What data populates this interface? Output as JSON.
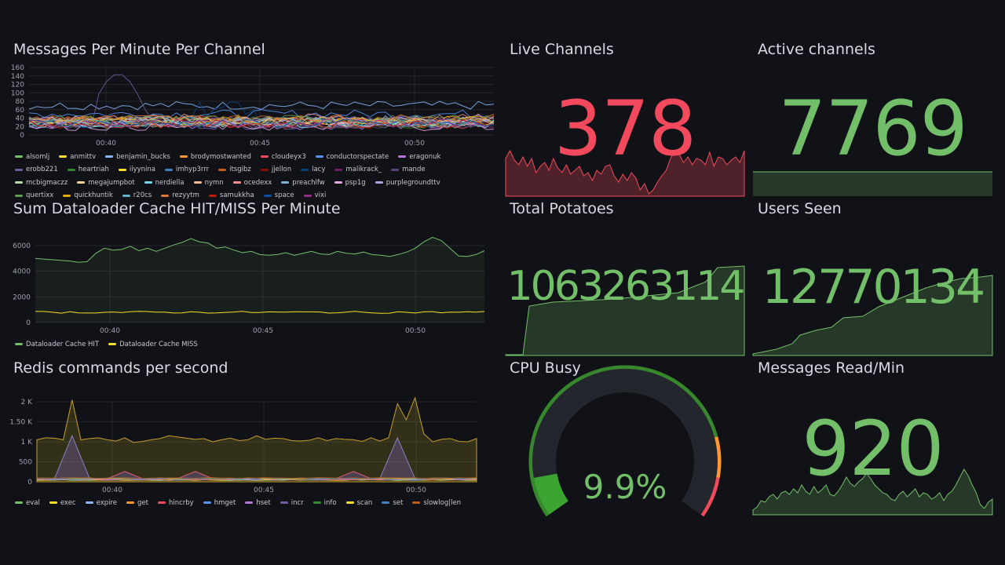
{
  "panels": {
    "messages_per_minute": {
      "title": "Messages Per Minute Per Channel",
      "legend": [
        {
          "name": "alsomlj",
          "color": "#73bf69"
        },
        {
          "name": "anmittv",
          "color": "#fade2a"
        },
        {
          "name": "benjamin_bucks",
          "color": "#8ab8ff"
        },
        {
          "name": "brodymostwanted",
          "color": "#ff9830"
        },
        {
          "name": "cloudeyx3",
          "color": "#f2495c"
        },
        {
          "name": "conductorspectate",
          "color": "#5794f2"
        },
        {
          "name": "eragonuk",
          "color": "#b877d9"
        },
        {
          "name": "erobb221",
          "color": "#705da0"
        },
        {
          "name": "heartriah",
          "color": "#37872d"
        },
        {
          "name": "iiyynina",
          "color": "#fade2a"
        },
        {
          "name": "imhyp3rrr",
          "color": "#447ebc"
        },
        {
          "name": "itsgibz",
          "color": "#c15c17"
        },
        {
          "name": "jjellon",
          "color": "#890f02"
        },
        {
          "name": "lacy",
          "color": "#0a437c"
        },
        {
          "name": "malikrack_",
          "color": "#6d1f62"
        },
        {
          "name": "mande",
          "color": "#584477"
        },
        {
          "name": "mcbigmaczz",
          "color": "#b7dbab"
        },
        {
          "name": "megajumpbot",
          "color": "#f4d598"
        },
        {
          "name": "nerdiella",
          "color": "#70dbed"
        },
        {
          "name": "nymn",
          "color": "#f9ba8f"
        },
        {
          "name": "ocedexx",
          "color": "#f29191"
        },
        {
          "name": "preachlfw",
          "color": "#82b5d8"
        },
        {
          "name": "psp1g",
          "color": "#e5a8e2"
        },
        {
          "name": "purplegroundttv",
          "color": "#aea2e0"
        },
        {
          "name": "quertixx",
          "color": "#629e51"
        },
        {
          "name": "quickhuntik",
          "color": "#e5ac0e"
        },
        {
          "name": "r20cs",
          "color": "#64b0c8"
        },
        {
          "name": "rezyytm",
          "color": "#e0752d"
        },
        {
          "name": "samukkha",
          "color": "#bf1b00"
        },
        {
          "name": "space",
          "color": "#0a50a1"
        },
        {
          "name": "vixi",
          "color": "#962d82"
        }
      ],
      "y_ticks": [
        "160",
        "140",
        "120",
        "100",
        "80",
        "60",
        "40",
        "20",
        "0"
      ],
      "x_ticks": [
        "00:40",
        "00:45",
        "00:50"
      ]
    },
    "dataloader_cache": {
      "title": "Sum Dataloader Cache HIT/MISS Per Minute",
      "y_ticks": [
        "6000",
        "4000",
        "2000",
        "0"
      ],
      "x_ticks": [
        "00:40",
        "00:45",
        "00:50"
      ],
      "legend": [
        {
          "name": "Dataloader Cache HIT",
          "color": "#73bf69"
        },
        {
          "name": "Dataloader Cache MISS",
          "color": "#fade2a"
        }
      ]
    },
    "redis_commands": {
      "title": "Redis commands per second",
      "y_ticks": [
        "2 K",
        "1.50 K",
        "1 K",
        "500",
        "0"
      ],
      "x_ticks": [
        "00:40",
        "00:45",
        "00:50"
      ],
      "legend": [
        {
          "name": "eval",
          "color": "#73bf69"
        },
        {
          "name": "exec",
          "color": "#fade2a"
        },
        {
          "name": "expire",
          "color": "#8ab8ff"
        },
        {
          "name": "get",
          "color": "#ff9830"
        },
        {
          "name": "hincrby",
          "color": "#f2495c"
        },
        {
          "name": "hmget",
          "color": "#5794f2"
        },
        {
          "name": "hset",
          "color": "#b877d9"
        },
        {
          "name": "incr",
          "color": "#705da0"
        },
        {
          "name": "info",
          "color": "#37872d"
        },
        {
          "name": "scan",
          "color": "#fade2a"
        },
        {
          "name": "set",
          "color": "#447ebc"
        },
        {
          "name": "slowlog|len",
          "color": "#c15c17"
        }
      ]
    },
    "live_channels": {
      "title": "Live Channels",
      "value": "378",
      "color": "#f2495c"
    },
    "active_channels": {
      "title": "Active channels",
      "value": "7769",
      "color": "#73bf69"
    },
    "total_potatoes": {
      "title": "Total Potatoes",
      "value": "1063263114",
      "color": "#73bf69"
    },
    "users_seen": {
      "title": "Users Seen",
      "value": "12770134",
      "color": "#73bf69"
    },
    "cpu_busy": {
      "title": "CPU Busy",
      "value": "9.9%",
      "value_fraction": 0.099,
      "color": "#73bf69"
    },
    "messages_read": {
      "title": "Messages Read/Min",
      "value": "920",
      "color": "#73bf69"
    }
  }
}
